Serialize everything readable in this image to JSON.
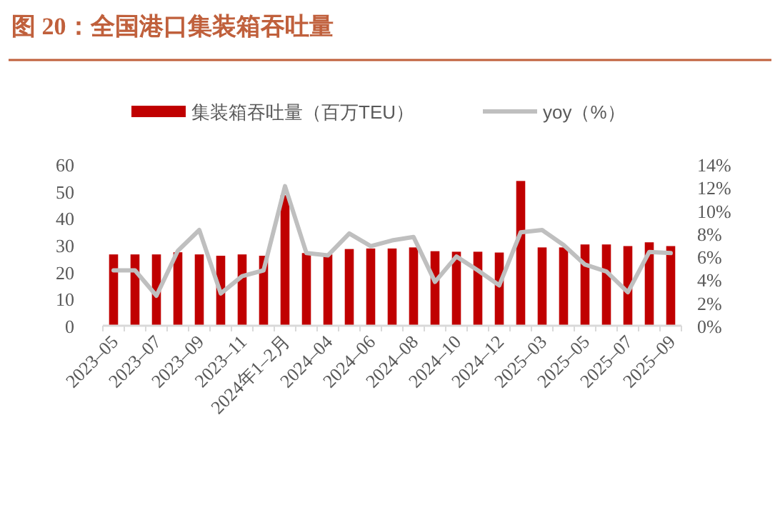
{
  "chart_data": {
    "type": "bar",
    "title": "图 20：全国港口集装箱吞吐量",
    "categories": [
      "2023–05",
      null,
      "2023–07",
      null,
      "2023–09",
      null,
      "2023–11",
      null,
      "2024年1–2月",
      null,
      "2024–04",
      null,
      "2024–06",
      null,
      "2024–08",
      null,
      "2024–10",
      null,
      "2024–12",
      null,
      "2025–03",
      null,
      "2025–05",
      null,
      "2025–07",
      null,
      "2025–09"
    ],
    "series": [
      {
        "name": "集装箱吞吐量（百万TEU）",
        "color": "#c00000",
        "values": [
          26.5,
          26.5,
          26.5,
          27.3,
          26.5,
          26,
          26.5,
          26,
          48.5,
          27,
          26.5,
          28.5,
          28.7,
          28.7,
          29.1,
          27.7,
          27.5,
          27.5,
          27.2,
          53.8,
          29.1,
          29.1,
          30.2,
          30.2,
          29.6,
          31,
          29.6
        ]
      },
      {
        "name": "yoy（%）",
        "type": "line",
        "axis": "y2",
        "color": "#bfbfbf",
        "values": [
          4.8,
          4.8,
          2.6,
          6.5,
          8.3,
          2.8,
          4.3,
          4.8,
          12.1,
          6.3,
          6.1,
          8.0,
          6.9,
          7.4,
          7.7,
          3.8,
          6.0,
          4.8,
          3.5,
          8.1,
          8.3,
          7.0,
          5.3,
          4.7,
          2.9,
          6.4,
          6.3
        ]
      }
    ],
    "ylim": [
      0,
      60
    ],
    "yticks": [
      0,
      10,
      20,
      30,
      40,
      50,
      60
    ],
    "y2lim": [
      0,
      14
    ],
    "y2ticks": [
      {
        "value": 0,
        "label": "0%"
      },
      {
        "value": 2,
        "label": "2%"
      },
      {
        "value": 4,
        "label": "4%"
      },
      {
        "value": 6,
        "label": "6%"
      },
      {
        "value": 8,
        "label": "8%"
      },
      {
        "value": 10,
        "label": "10%"
      },
      {
        "value": 12,
        "label": "12%"
      },
      {
        "value": 14,
        "label": "14%"
      }
    ],
    "legend": "top",
    "grid": false
  }
}
